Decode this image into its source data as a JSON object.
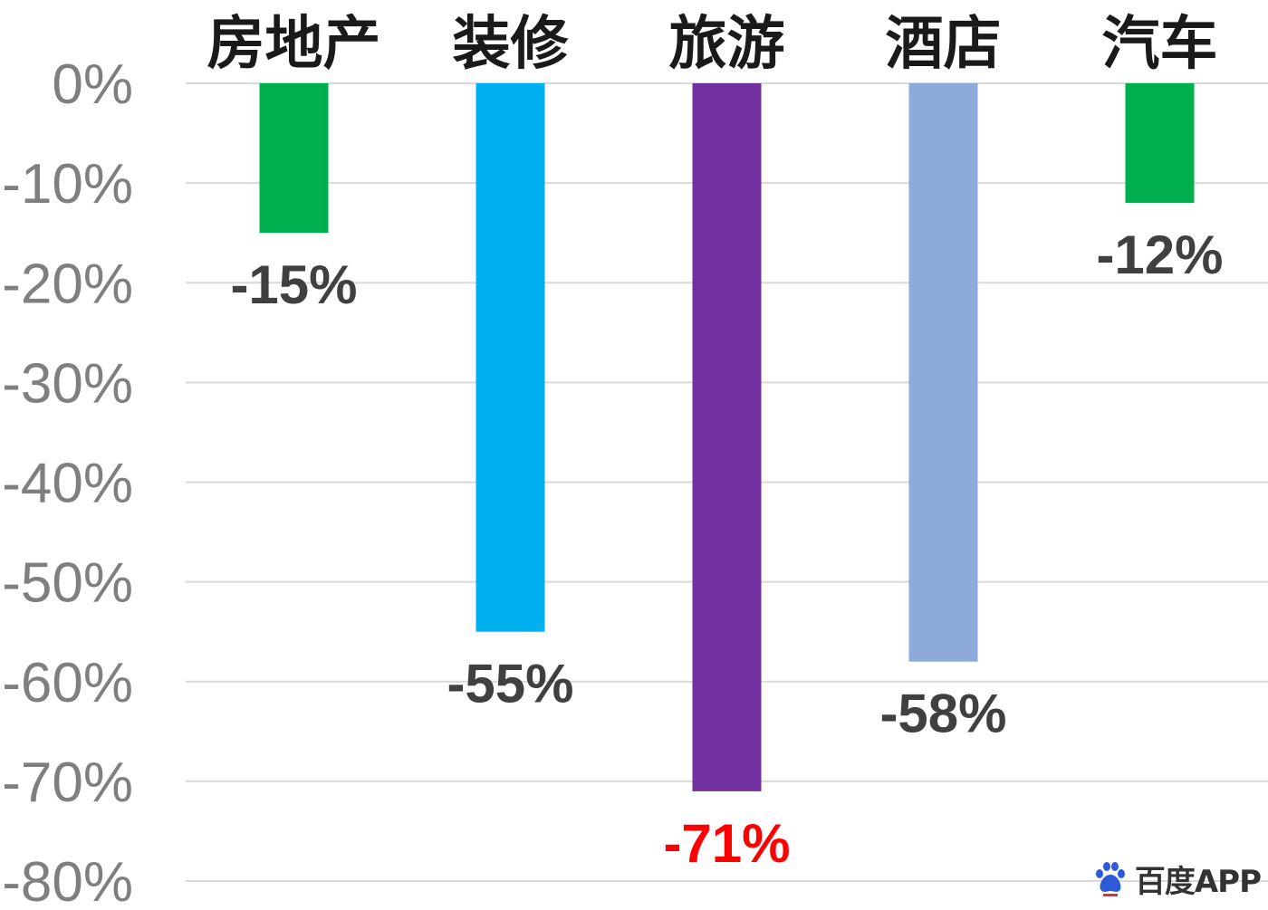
{
  "chart_data": {
    "type": "bar",
    "categories": [
      "房地产",
      "装修",
      "旅游",
      "酒店",
      "汽车"
    ],
    "values": [
      -15,
      -55,
      -71,
      -58,
      -12
    ],
    "data_labels": [
      "-15%",
      "-55%",
      "-71%",
      "-58%",
      "-12%"
    ],
    "bar_colors": [
      "#00b050",
      "#00b0f0",
      "#7030a0",
      "#8eaadb",
      "#00b050"
    ],
    "label_colors": [
      "#404040",
      "#404040",
      "#ff0000",
      "#404040",
      "#404040"
    ],
    "ylim": [
      -80,
      0
    ],
    "yticks": [
      0,
      -10,
      -20,
      -30,
      -40,
      -50,
      -60,
      -70,
      -80
    ],
    "ytick_labels": [
      "0%",
      "-10%",
      "-20%",
      "-30%",
      "-40%",
      "-50%",
      "-60%",
      "-70%",
      "-80%"
    ],
    "grid": true,
    "category_axis_position": "top",
    "title": "",
    "xlabel": "",
    "ylabel": ""
  },
  "watermark": {
    "text": "百度APP",
    "icon": "baidu-paw-icon"
  }
}
